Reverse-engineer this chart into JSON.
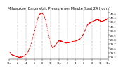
{
  "title": "Milwaukee  Barometric Pressure per Minute (Last 24 Hours)",
  "line_color": "#ff0000",
  "bg_color": "#ffffff",
  "plot_bg": "#ffffff",
  "grid_color": "#888888",
  "ylim": [
    29.35,
    30.45
  ],
  "yticks": [
    29.4,
    29.5,
    29.6,
    29.7,
    29.8,
    29.9,
    30.0,
    30.1,
    30.2,
    30.3,
    30.4
  ],
  "num_points": 1440,
  "pressure_profile": [
    29.52,
    29.5,
    29.47,
    29.45,
    29.44,
    29.43,
    29.42,
    29.41,
    29.41,
    29.4,
    29.4,
    29.4,
    29.4,
    29.41,
    29.42,
    29.43,
    29.45,
    29.47,
    29.5,
    29.54,
    29.59,
    29.65,
    29.72,
    29.8,
    29.89,
    29.98,
    30.07,
    30.16,
    30.24,
    30.31,
    30.36,
    30.39,
    30.4,
    30.39,
    30.36,
    30.31,
    30.24,
    30.15,
    30.05,
    29.94,
    29.83,
    29.73,
    29.66,
    29.62,
    29.62,
    29.64,
    29.67,
    29.71,
    29.74,
    29.76,
    29.77,
    29.77,
    29.76,
    29.75,
    29.74,
    29.73,
    29.72,
    29.72,
    29.72,
    29.73,
    29.73,
    29.74,
    29.74,
    29.75,
    29.75,
    29.76,
    29.76,
    29.77,
    29.78,
    29.79,
    29.8,
    29.82,
    29.85,
    29.88,
    29.92,
    29.97,
    30.03,
    30.08,
    30.12,
    30.15,
    30.17,
    30.18,
    30.19,
    30.2,
    30.21,
    30.22,
    30.23,
    30.24,
    30.25,
    30.24,
    30.23,
    30.22,
    30.21,
    30.21,
    30.22,
    30.23,
    30.24,
    30.25,
    30.26,
    30.26
  ],
  "vgrid_positions": [
    0.083,
    0.167,
    0.25,
    0.333,
    0.417,
    0.5,
    0.583,
    0.667,
    0.75,
    0.833,
    0.917
  ],
  "xtick_labels": [
    "12a",
    "2",
    "4",
    "6",
    "8",
    "10",
    "12p",
    "2",
    "4",
    "6",
    "8",
    "10",
    "12a"
  ],
  "title_fontsize": 3.5,
  "tick_fontsize": 2.8,
  "linewidth": 0.5
}
